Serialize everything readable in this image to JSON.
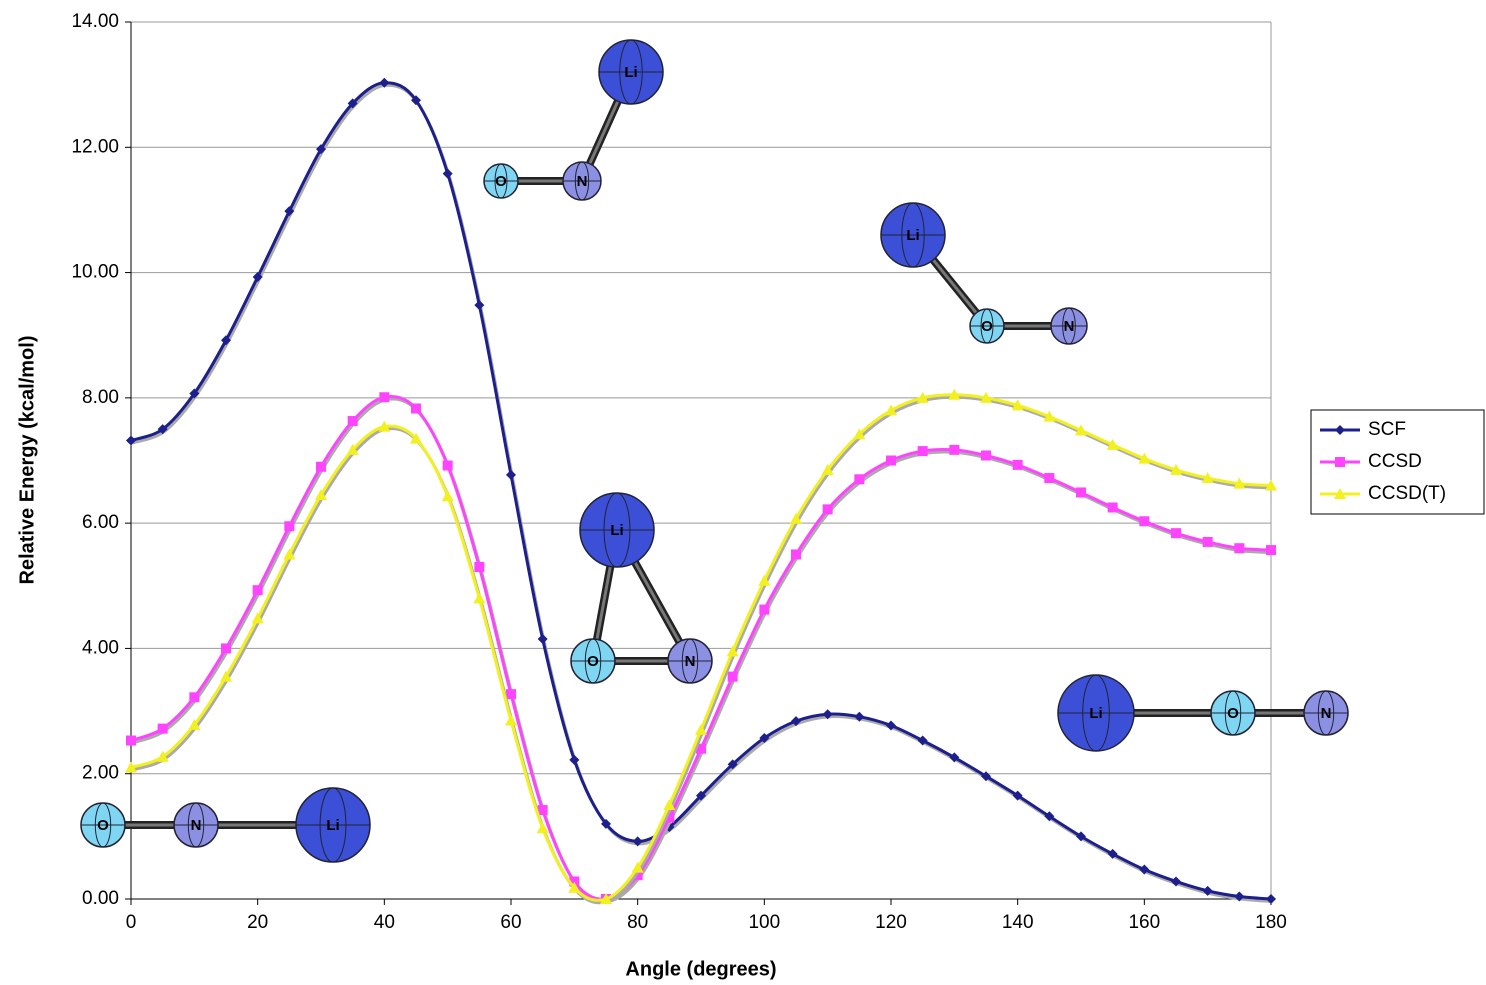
{
  "chart_data": {
    "type": "line",
    "x_label": "Angle (degrees)",
    "y_label": "Relative Energy (kcal/mol)",
    "x": [
      0,
      5,
      10,
      15,
      20,
      25,
      30,
      35,
      40,
      45,
      50,
      55,
      60,
      65,
      70,
      75,
      80,
      85,
      90,
      95,
      100,
      105,
      110,
      115,
      120,
      125,
      130,
      135,
      140,
      145,
      150,
      155,
      160,
      165,
      170,
      175,
      180
    ],
    "series": [
      {
        "name": "SCF",
        "color": "#1c1f8c",
        "marker": "diamond",
        "values": [
          7.32,
          7.5,
          8.07,
          8.92,
          9.93,
          10.98,
          11.97,
          12.7,
          13.03,
          12.75,
          11.58,
          9.48,
          6.77,
          4.15,
          2.22,
          1.2,
          0.92,
          1.15,
          1.65,
          2.15,
          2.57,
          2.84,
          2.95,
          2.91,
          2.77,
          2.53,
          2.26,
          1.96,
          1.65,
          1.32,
          1.0,
          0.72,
          0.47,
          0.28,
          0.13,
          0.04,
          0.0
        ]
      },
      {
        "name": "CCSD",
        "color": "#ff44ff",
        "marker": "square",
        "values": [
          2.53,
          2.72,
          3.22,
          4.0,
          4.93,
          5.95,
          6.9,
          7.63,
          8.01,
          7.83,
          6.92,
          5.3,
          3.27,
          1.42,
          0.28,
          0.0,
          0.38,
          1.3,
          2.4,
          3.55,
          4.62,
          5.5,
          6.22,
          6.7,
          7.0,
          7.15,
          7.17,
          7.08,
          6.93,
          6.72,
          6.49,
          6.25,
          6.03,
          5.84,
          5.7,
          5.6,
          5.57
        ]
      },
      {
        "name": "CCSD(T)",
        "color": "#f2f01e",
        "marker": "triangle",
        "values": [
          2.1,
          2.27,
          2.78,
          3.55,
          4.48,
          5.5,
          6.45,
          7.17,
          7.54,
          7.35,
          6.43,
          4.8,
          2.85,
          1.13,
          0.18,
          0.0,
          0.5,
          1.5,
          2.7,
          3.95,
          5.08,
          6.07,
          6.85,
          7.42,
          7.8,
          8.0,
          8.05,
          8.0,
          7.88,
          7.7,
          7.48,
          7.25,
          7.03,
          6.85,
          6.72,
          6.63,
          6.6
        ]
      }
    ],
    "xlim": [
      0,
      180
    ],
    "xticks": [
      0,
      20,
      40,
      60,
      80,
      100,
      120,
      140,
      160,
      180
    ],
    "ylim": [
      0,
      14
    ],
    "yticks": [
      {
        "value": 0,
        "label": "0.00"
      },
      {
        "value": 2,
        "label": "2.00"
      },
      {
        "value": 4,
        "label": "4.00"
      },
      {
        "value": 6,
        "label": "6.00"
      },
      {
        "value": 8,
        "label": "8.00"
      },
      {
        "value": 10,
        "label": "10.00"
      },
      {
        "value": 12,
        "label": "12.00"
      },
      {
        "value": 14,
        "label": "14.00"
      }
    ],
    "grid": true,
    "legend": "right",
    "molecules": [
      {
        "atoms": [
          "O",
          "N",
          "Li"
        ]
      },
      {
        "atoms": [
          "O",
          "N",
          "Li"
        ]
      },
      {
        "atoms": [
          "Li",
          "O",
          "N"
        ]
      },
      {
        "atoms": [
          "Li",
          "O",
          "N"
        ]
      },
      {
        "atoms": [
          "Li",
          "O",
          "N"
        ]
      }
    ]
  }
}
